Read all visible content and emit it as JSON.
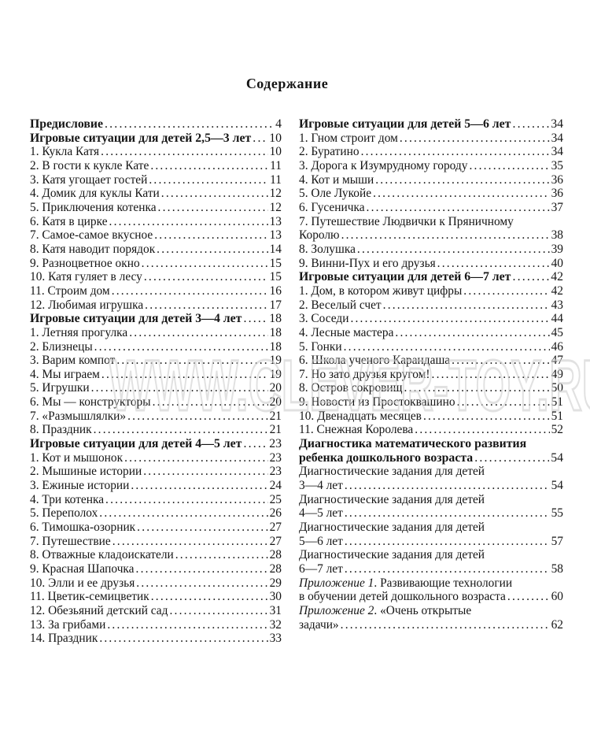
{
  "page": {
    "title": "Содержание"
  },
  "watermark": {
    "text": "WWW.CLEVER-TOY.RU"
  },
  "toc": {
    "left": [
      {
        "text": "Предисловие",
        "page": "4",
        "bold": true
      },
      {
        "text": "Игровые ситуации для детей 2,5—3 лет",
        "page": "10",
        "bold": true
      },
      {
        "text": "1. Кукла Катя",
        "page": "10"
      },
      {
        "text": "2. В гости к кукле Кате",
        "page": "11"
      },
      {
        "text": "3. Катя угощает гостей",
        "page": "11"
      },
      {
        "text": "4. Домик для куклы Кати",
        "page": "12"
      },
      {
        "text": "5. Приключения котенка",
        "page": "12"
      },
      {
        "text": "6. Катя в цирке",
        "page": "13"
      },
      {
        "text": "7. Самое-самое вкусное",
        "page": "13"
      },
      {
        "text": "8. Катя наводит порядок",
        "page": "14"
      },
      {
        "text": "9. Разноцветное окно",
        "page": "15"
      },
      {
        "text": "10. Катя гуляет в лесу",
        "page": "15"
      },
      {
        "text": "11. Строим дом",
        "page": "16"
      },
      {
        "text": "12. Любимая игрушка",
        "page": "17"
      },
      {
        "text": "Игровые ситуации для детей 3—4 лет",
        "page": "18",
        "bold": true
      },
      {
        "text": "1. Летняя прогулка",
        "page": "18"
      },
      {
        "text": "2. Близнецы",
        "page": "18"
      },
      {
        "text": "3. Варим компот",
        "page": "19"
      },
      {
        "text": "4. Мы играем",
        "page": "19"
      },
      {
        "text": "5. Игрушки",
        "page": "20"
      },
      {
        "text": "6. Мы — конструкторы",
        "page": "20"
      },
      {
        "text": "7. «Размышлялки»",
        "page": "21"
      },
      {
        "text": "8. Праздник",
        "page": "21"
      },
      {
        "text": "Игровые ситуации для детей 4—5 лет",
        "page": "23",
        "bold": true
      },
      {
        "text": "1. Кот и мышонок",
        "page": "23"
      },
      {
        "text": "2. Мышиные истории",
        "page": "23"
      },
      {
        "text": "3. Ежиные истории",
        "page": "24"
      },
      {
        "text": "4. Три котенка",
        "page": "25"
      },
      {
        "text": "5. Переполох",
        "page": "26"
      },
      {
        "text": "6. Тимошка-озорник",
        "page": "27"
      },
      {
        "text": "7. Путешествие",
        "page": "27"
      },
      {
        "text": "8. Отважные кладоискатели",
        "page": "28"
      },
      {
        "text": "9. Красная Шапочка",
        "page": "28"
      },
      {
        "text": "10. Элли и ее друзья",
        "page": "29"
      },
      {
        "text": "11. Цветик-семицветик",
        "page": "30"
      },
      {
        "text": "12. Обезьяний детский сад",
        "page": "31"
      },
      {
        "text": "13. За грибами",
        "page": "32"
      },
      {
        "text": "14. Праздник",
        "page": "33"
      }
    ],
    "right": [
      {
        "text": "Игровые ситуации для детей 5—6 лет",
        "page": "34",
        "bold": true
      },
      {
        "text": "1. Гном строит дом",
        "page": "34"
      },
      {
        "text": "2. Буратино",
        "page": "34"
      },
      {
        "text": "3. Дорога к Изумрудному городу",
        "page": "35"
      },
      {
        "text": "4. Кот и мыши",
        "page": "36"
      },
      {
        "text": "5. Оле Лукойе",
        "page": "36"
      },
      {
        "text": "6. Гусеничка",
        "page": "37"
      },
      {
        "text": "7. Путешествие Людвички к Пряничному",
        "page": ""
      },
      {
        "text": "Королю",
        "page": "38"
      },
      {
        "text": "8. Золушка",
        "page": "39"
      },
      {
        "text": "9. Винни-Пух и его друзья",
        "page": "40"
      },
      {
        "text": "Игровые ситуации для детей 6—7 лет",
        "page": "42",
        "bold": true
      },
      {
        "text": "1. Дом, в котором живут цифры",
        "page": "42"
      },
      {
        "text": "2. Веселый счет",
        "page": "43"
      },
      {
        "text": "3. Соседи",
        "page": "44"
      },
      {
        "text": "4. Лесные мастера",
        "page": "45"
      },
      {
        "text": "5. Гонки",
        "page": "46"
      },
      {
        "text": "6. Школа ученого Карандаша",
        "page": "47"
      },
      {
        "text": "7. Но зато друзья кругом!",
        "page": "49"
      },
      {
        "text": "8. Остров сокровищ",
        "page": "50"
      },
      {
        "text": "9. Новости из Простоквашино",
        "page": "51"
      },
      {
        "text": "10. Двенадцать месяцев",
        "page": "51"
      },
      {
        "text": "11. Снежная Королева",
        "page": "52"
      },
      {
        "text": "Диагностика математического развития",
        "page": "",
        "bold": true
      },
      {
        "text": "ребенка дошкольного возраста",
        "page": "54",
        "bold": true
      },
      {
        "text": "Диагностические задания для детей",
        "page": ""
      },
      {
        "text": "3—4 лет",
        "page": "54"
      },
      {
        "text": "Диагностические задания для детей",
        "page": ""
      },
      {
        "text": "4—5 лет",
        "page": "55"
      },
      {
        "text": "Диагностические задания для детей",
        "page": ""
      },
      {
        "text": "5—6 лет",
        "page": "57"
      },
      {
        "text": "Диагностические задания для детей",
        "page": ""
      },
      {
        "text": "6—7 лет",
        "page": "58"
      },
      {
        "italic": "Приложение 1",
        "text": ". Развивающие технологии",
        "page": ""
      },
      {
        "text": "в обучении детей дошкольного возраста",
        "page": "60"
      },
      {
        "italic": "Приложение 2",
        "text": ". «Очень открытые",
        "page": ""
      },
      {
        "text": "задачи»",
        "page": "62"
      }
    ]
  }
}
